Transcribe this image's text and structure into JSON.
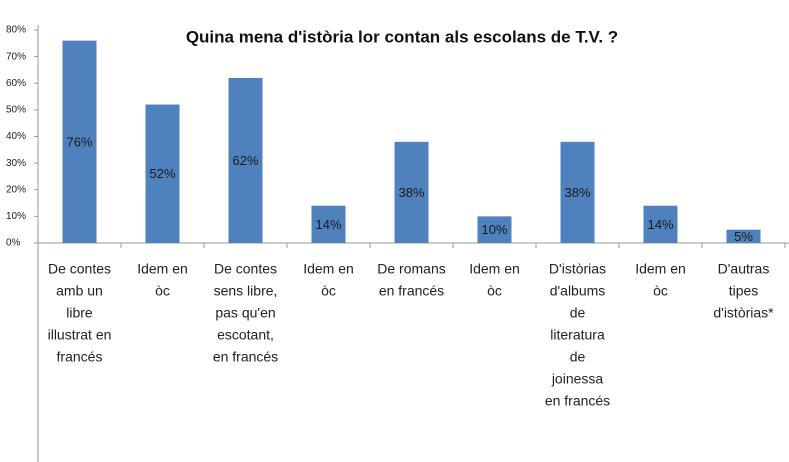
{
  "chart_data": {
    "type": "bar",
    "title": "Quina mena d'istòria lor contan als escolans de T.V. ?",
    "categories": [
      [
        "De contes",
        "amb un",
        "libre",
        "illustrat en",
        "francés"
      ],
      [
        "Idem en",
        "òc"
      ],
      [
        "De contes",
        "sens libre,",
        "pas qu'en",
        "escotant,",
        "en francés"
      ],
      [
        "Idem en",
        "òc"
      ],
      [
        "De romans",
        "en francés"
      ],
      [
        "Idem en",
        "òc"
      ],
      [
        "D'istòrias",
        "d'albums",
        "de",
        "literatura",
        "de",
        "joinessa",
        "en francés"
      ],
      [
        "Idem en",
        "òc"
      ],
      [
        "D'autras",
        "tipes",
        "d'istòrias*"
      ]
    ],
    "values": [
      76,
      52,
      62,
      14,
      38,
      10,
      38,
      14,
      5
    ],
    "value_labels": [
      "76%",
      "52%",
      "62%",
      "14%",
      "38%",
      "10%",
      "38%",
      "14%",
      "5%"
    ],
    "color": "#4f81bd",
    "ylim": [
      0,
      80
    ],
    "yticks": [
      {
        "value": 0,
        "label": "0%"
      },
      {
        "value": 10,
        "label": "10%"
      },
      {
        "value": 20,
        "label": "20%"
      },
      {
        "value": 30,
        "label": "30%"
      },
      {
        "value": 40,
        "label": "40%"
      },
      {
        "value": 50,
        "label": "50%"
      },
      {
        "value": 60,
        "label": "60%"
      },
      {
        "value": 70,
        "label": "70%"
      },
      {
        "value": 80,
        "label": "80%"
      }
    ],
    "grid": false
  }
}
